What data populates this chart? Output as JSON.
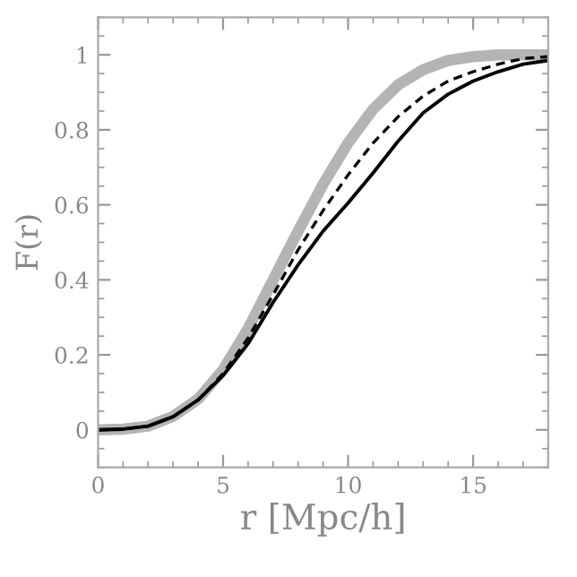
{
  "chart_data": {
    "type": "line",
    "xlabel": "r [Mpc/h]",
    "ylabel": "F(r)",
    "x": [
      0,
      1,
      2,
      3,
      4,
      5,
      6,
      7,
      8,
      9,
      10,
      11,
      12,
      13,
      14,
      15,
      16,
      17,
      18
    ],
    "series": [
      {
        "color": "#b4b4b4",
        "values": [
          0,
          0.002,
          0.01,
          0.036,
          0.082,
          0.16,
          0.27,
          0.4,
          0.53,
          0.655,
          0.765,
          0.855,
          0.92,
          0.96,
          0.985,
          0.995,
          1.0,
          1.0,
          1.0
        ],
        "line_style": "solid"
      },
      {
        "color": "#000000",
        "values": [
          0,
          0.002,
          0.01,
          0.035,
          0.08,
          0.15,
          0.245,
          0.36,
          0.48,
          0.585,
          0.68,
          0.765,
          0.835,
          0.89,
          0.93,
          0.955,
          0.975,
          0.99,
          0.995
        ],
        "line_style": "dashed"
      },
      {
        "color": "#000000",
        "values": [
          0,
          0.002,
          0.01,
          0.035,
          0.08,
          0.145,
          0.23,
          0.34,
          0.44,
          0.53,
          0.605,
          0.685,
          0.77,
          0.845,
          0.895,
          0.93,
          0.955,
          0.975,
          0.985
        ],
        "line_style": "solid"
      }
    ],
    "xlim": [
      0,
      18
    ],
    "ylim": [
      -0.1,
      1.1
    ],
    "xticks": [
      0,
      5,
      10,
      15
    ],
    "yticks": [
      0,
      0.2,
      0.4,
      0.6,
      0.8,
      1
    ],
    "grid": false,
    "legend": false
  }
}
